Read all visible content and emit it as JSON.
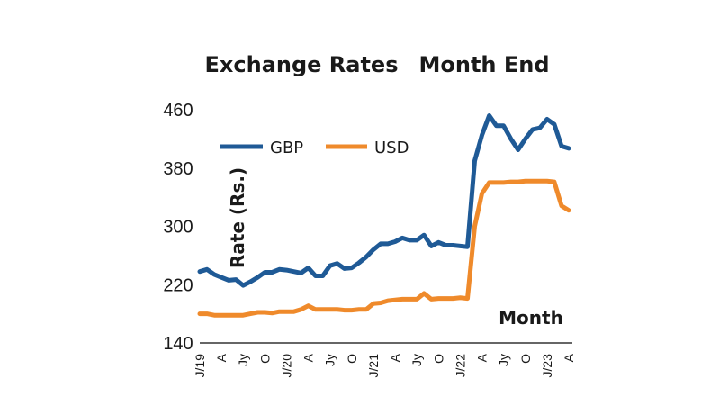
{
  "chart_data": {
    "type": "line",
    "title": "Exchange Rates",
    "subtitle": "Month End",
    "xlabel": "Month",
    "ylabel": "Rate (Rs.)",
    "ylim": [
      140,
      460
    ],
    "yticks": [
      140,
      220,
      300,
      380,
      460
    ],
    "grid": false,
    "legend": "top-left",
    "x_tick_labels": [
      "J/19",
      "A",
      "Jy",
      "O",
      "J/20",
      "A",
      "Jy",
      "O",
      "J/21",
      "A",
      "Jy",
      "O",
      "J/22",
      "A",
      "Jy",
      "O",
      "J/23",
      "A"
    ],
    "x": [
      "2019-01",
      "2019-02",
      "2019-03",
      "2019-04",
      "2019-05",
      "2019-06",
      "2019-07",
      "2019-08",
      "2019-09",
      "2019-10",
      "2019-11",
      "2019-12",
      "2020-01",
      "2020-02",
      "2020-03",
      "2020-04",
      "2020-05",
      "2020-06",
      "2020-07",
      "2020-08",
      "2020-09",
      "2020-10",
      "2020-11",
      "2020-12",
      "2021-01",
      "2021-02",
      "2021-03",
      "2021-04",
      "2021-05",
      "2021-06",
      "2021-07",
      "2021-08",
      "2021-09",
      "2021-10",
      "2021-11",
      "2021-12",
      "2022-01",
      "2022-02",
      "2022-03",
      "2022-04",
      "2022-05",
      "2022-06",
      "2022-07",
      "2022-08",
      "2022-09",
      "2022-10",
      "2022-11",
      "2022-12",
      "2023-01",
      "2023-02",
      "2023-03",
      "2023-04"
    ],
    "series": [
      {
        "name": "GBP",
        "color": "#1f5a96",
        "values": [
          238,
          241,
          234,
          230,
          226,
          227,
          219,
          224,
          230,
          237,
          237,
          241,
          240,
          238,
          236,
          243,
          232,
          232,
          246,
          249,
          242,
          243,
          250,
          258,
          268,
          276,
          276,
          279,
          284,
          281,
          281,
          288,
          273,
          278,
          274,
          274,
          273,
          272,
          390,
          425,
          452,
          438,
          438,
          420,
          405,
          420,
          433,
          435,
          447,
          440,
          410,
          407
        ]
      },
      {
        "name": "USD",
        "color": "#ef8a2b",
        "values": [
          180,
          180,
          178,
          178,
          178,
          178,
          178,
          180,
          182,
          182,
          181,
          183,
          183,
          183,
          186,
          191,
          186,
          186,
          186,
          186,
          185,
          185,
          186,
          186,
          194,
          195,
          198,
          199,
          200,
          200,
          200,
          208,
          200,
          201,
          201,
          201,
          202,
          201,
          300,
          345,
          360,
          360,
          360,
          361,
          361,
          362,
          362,
          362,
          362,
          361,
          328,
          322
        ]
      }
    ]
  }
}
